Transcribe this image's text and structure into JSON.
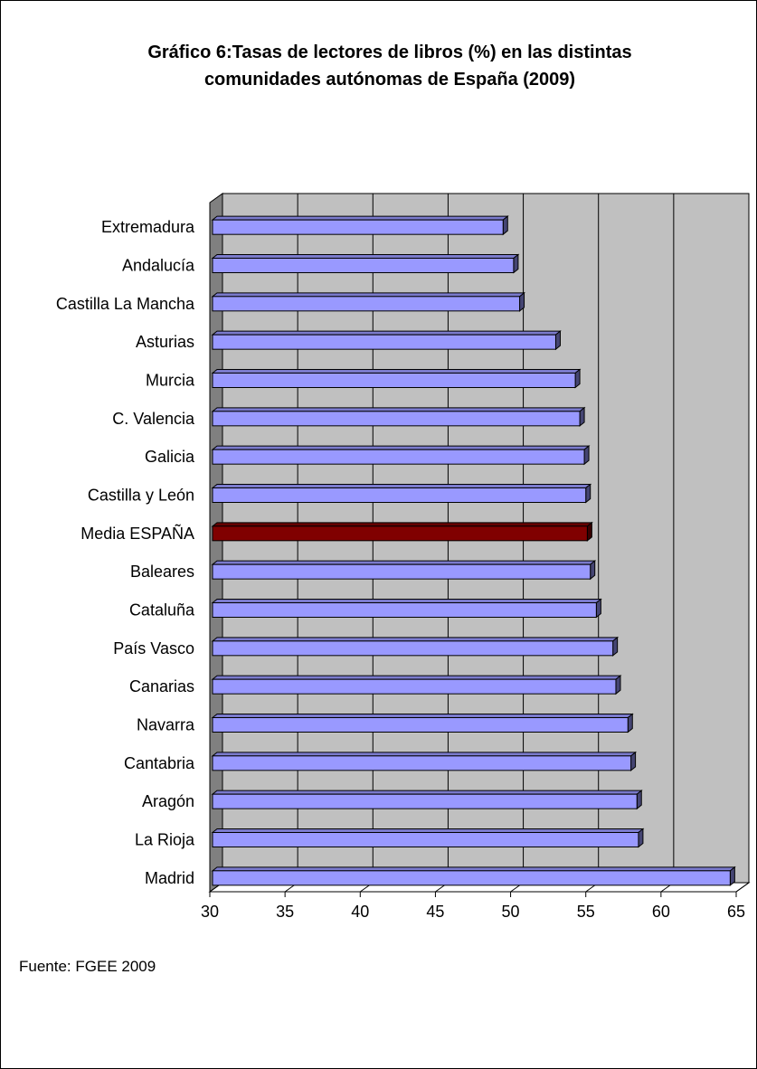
{
  "chart_data": {
    "type": "bar",
    "orientation": "horizontal",
    "title_lines": [
      "Gráfico 6:Tasas de lectores de libros (%) en las distintas",
      "comunidades autónomas de España (2009)"
    ],
    "categories": [
      "Extremadura",
      "Andalucía",
      "Castilla La Mancha",
      "Asturias",
      "Murcia",
      "C. Valencia",
      "Galicia",
      "Castilla y León",
      "Media ESPAÑA",
      "Baleares",
      "Cataluña",
      "País Vasco",
      "Canarias",
      "Navarra",
      "Cantabria",
      "Aragón",
      "La Rioja",
      "Madrid"
    ],
    "values": [
      49.5,
      50.2,
      50.6,
      53.0,
      54.3,
      54.6,
      54.9,
      55.0,
      55.1,
      55.3,
      55.7,
      56.8,
      57.0,
      57.8,
      58.0,
      58.4,
      58.5,
      64.6
    ],
    "highlight_category": "Media ESPAÑA",
    "xlim": [
      30,
      65
    ],
    "xticks": [
      30,
      35,
      40,
      45,
      50,
      55,
      60,
      65
    ],
    "grid": true,
    "style": "3d",
    "colors": {
      "bar": "#9999ff",
      "bar_highlight": "#800000",
      "plot_background": "#c0c0c0",
      "wall_side": "#808080"
    }
  },
  "source_note": "Fuente: FGEE 2009"
}
